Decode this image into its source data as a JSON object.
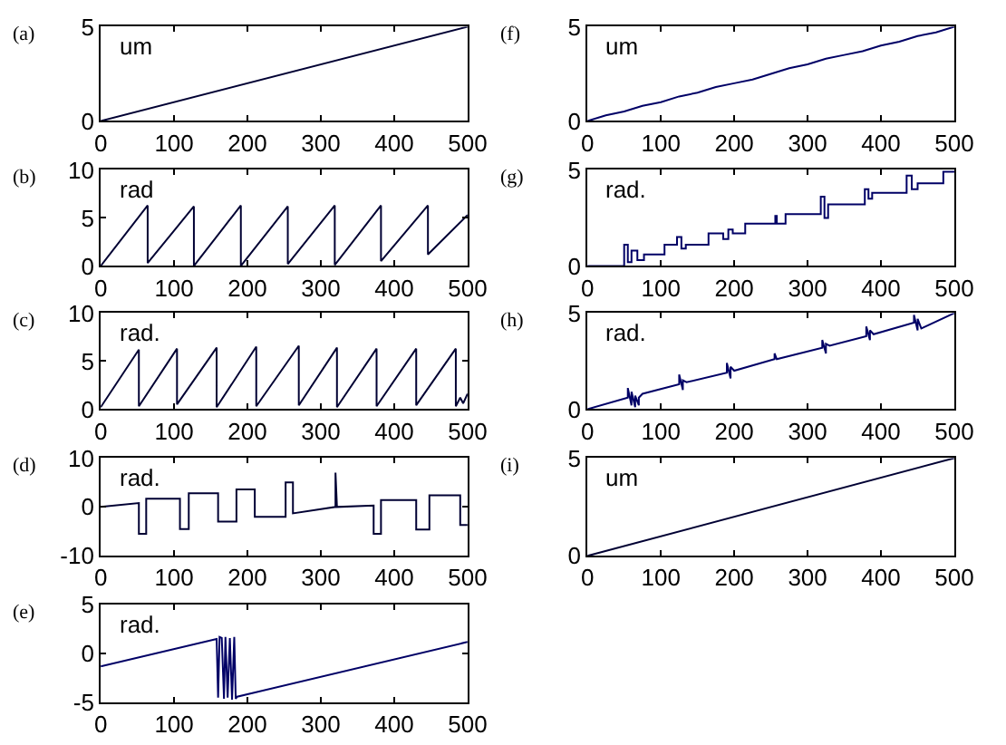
{
  "chart_data": [
    {
      "type": "line",
      "title": "(a)",
      "annotations": [
        "um"
      ],
      "color": "#000033",
      "xlim": [
        0,
        500
      ],
      "xticks": [
        0,
        100,
        200,
        300,
        400,
        500
      ],
      "ylim": [
        0,
        5
      ],
      "yticks": [
        0,
        5
      ],
      "x": [
        0,
        500
      ],
      "values": [
        0,
        5
      ]
    },
    {
      "type": "line",
      "title": "(f)",
      "annotations": [
        "um"
      ],
      "color": "#000066",
      "xlim": [
        0,
        500
      ],
      "xticks": [
        0,
        100,
        200,
        300,
        400,
        500
      ],
      "ylim": [
        0,
        5
      ],
      "yticks": [
        0,
        5
      ],
      "x": [
        0,
        25,
        50,
        75,
        100,
        125,
        150,
        175,
        200,
        225,
        250,
        275,
        300,
        325,
        350,
        375,
        400,
        425,
        450,
        475,
        500
      ],
      "values": [
        0,
        0.3,
        0.5,
        0.8,
        1,
        1.3,
        1.5,
        1.8,
        2,
        2.2,
        2.5,
        2.8,
        3,
        3.3,
        3.5,
        3.7,
        4,
        4.2,
        4.5,
        4.7,
        5
      ]
    },
    {
      "type": "line",
      "title": "(b)",
      "annotations": [
        "rad"
      ],
      "color": "#000033",
      "xlim": [
        0,
        500
      ],
      "xticks": [
        0,
        100,
        200,
        300,
        400,
        500
      ],
      "ylim": [
        0,
        10
      ],
      "yticks": [
        0,
        5,
        10
      ],
      "x": [
        0,
        64,
        64,
        127,
        127,
        191,
        191,
        255,
        255,
        319,
        319,
        382,
        382,
        446,
        446,
        500
      ],
      "values": [
        0,
        6.3,
        0.3,
        6.2,
        0,
        6.3,
        0,
        6.2,
        0.2,
        6.3,
        0.1,
        6.3,
        0.5,
        6.3,
        1.2,
        5.3
      ]
    },
    {
      "type": "line",
      "title": "(g)",
      "annotations": [
        "rad."
      ],
      "color": "#000066",
      "xlim": [
        0,
        500
      ],
      "xticks": [
        0,
        100,
        200,
        300,
        400,
        500
      ],
      "ylim": [
        0,
        5
      ],
      "yticks": [
        0,
        5
      ],
      "x": [
        0,
        50,
        50,
        55,
        55,
        60,
        60,
        68,
        68,
        77,
        77,
        105,
        105,
        122,
        122,
        128,
        128,
        134,
        134,
        165,
        165,
        185,
        185,
        192,
        192,
        198,
        198,
        215,
        215,
        256,
        256,
        258,
        258,
        270,
        270,
        318,
        318,
        323,
        323,
        328,
        328,
        378,
        378,
        383,
        383,
        388,
        388,
        435,
        435,
        442,
        442,
        450,
        450,
        455,
        455,
        485,
        485,
        500
      ],
      "values": [
        0,
        0,
        1.1,
        1.1,
        0.2,
        0.2,
        0.8,
        0.8,
        0.3,
        0.3,
        0.6,
        0.6,
        1.1,
        1.1,
        1.5,
        1.5,
        0.9,
        0.9,
        1.1,
        1.1,
        1.7,
        1.7,
        1.4,
        1.4,
        1.9,
        1.9,
        1.7,
        1.7,
        2.2,
        2.2,
        2.6,
        2.6,
        2.2,
        2.2,
        2.7,
        2.7,
        3.6,
        3.6,
        2.5,
        2.5,
        3.2,
        3.2,
        4,
        4,
        3.5,
        3.5,
        3.8,
        3.8,
        4.7,
        4.7,
        4,
        4,
        4.3,
        4.3,
        4.3,
        4.3,
        4.9,
        4.9
      ]
    },
    {
      "type": "line",
      "title": "(c)",
      "annotations": [
        "rad."
      ],
      "color": "#000033",
      "xlim": [
        0,
        500
      ],
      "xticks": [
        0,
        100,
        200,
        300,
        400,
        500
      ],
      "ylim": [
        0,
        10
      ],
      "yticks": [
        0,
        5,
        10
      ],
      "x": [
        0,
        52,
        52,
        104,
        104,
        158,
        158,
        212,
        212,
        270,
        270,
        322,
        322,
        376,
        376,
        430,
        430,
        484,
        484,
        490,
        494,
        500
      ],
      "values": [
        0.2,
        6.2,
        0.3,
        6.3,
        0.5,
        6.4,
        0.2,
        6.5,
        0.3,
        6.6,
        0.4,
        6.4,
        0.2,
        6.3,
        0.3,
        6.3,
        0.4,
        6.3,
        0.3,
        1.2,
        0.6,
        1.6
      ]
    },
    {
      "type": "line",
      "title": "(h)",
      "annotations": [
        "rad."
      ],
      "color": "#000066",
      "xlim": [
        0,
        500
      ],
      "xticks": [
        0,
        100,
        200,
        300,
        400,
        500
      ],
      "ylim": [
        0,
        5
      ],
      "yticks": [
        0,
        5
      ],
      "x": [
        0,
        55,
        55,
        60,
        60,
        65,
        65,
        70,
        70,
        75,
        125,
        125,
        130,
        130,
        135,
        190,
        190,
        195,
        195,
        200,
        255,
        255,
        258,
        320,
        320,
        325,
        325,
        330,
        380,
        380,
        385,
        385,
        390,
        445,
        445,
        450,
        450,
        455,
        500
      ],
      "values": [
        0,
        0.6,
        1.1,
        0.2,
        0.9,
        0.1,
        0.7,
        0.2,
        0.6,
        0.8,
        1.3,
        1.8,
        1,
        1.5,
        1.4,
        1.9,
        2.4,
        1.6,
        2.2,
        2,
        2.6,
        2.9,
        2.6,
        3.2,
        3.6,
        2.9,
        3.4,
        3.3,
        3.8,
        4.3,
        3.6,
        4.1,
        3.9,
        4.5,
        4.9,
        4.1,
        4.7,
        4.2,
        5
      ]
    },
    {
      "type": "line",
      "title": "(d)",
      "annotations": [
        "rad."
      ],
      "color": "#000033",
      "xlim": [
        0,
        500
      ],
      "xticks": [
        0,
        100,
        200,
        300,
        400,
        500
      ],
      "ylim": [
        -10,
        10
      ],
      "yticks": [
        -10,
        0,
        10
      ],
      "x": [
        0,
        52,
        52,
        62,
        62,
        108,
        108,
        120,
        120,
        160,
        160,
        185,
        185,
        210,
        210,
        252,
        252,
        262,
        262,
        320,
        320,
        322,
        322,
        372,
        372,
        382,
        382,
        430,
        430,
        448,
        448,
        490,
        490,
        500
      ],
      "values": [
        0,
        0.8,
        -5.5,
        -5.5,
        1.7,
        1.7,
        -4.5,
        -4.5,
        2.8,
        2.8,
        -3,
        -3,
        3.6,
        3.6,
        -2,
        -2,
        5,
        5,
        -1.3,
        0,
        7,
        0,
        0,
        0.3,
        -5.5,
        -5.5,
        1.4,
        1.4,
        -4.6,
        -4.6,
        2.4,
        2.4,
        -3.7,
        -3.7
      ]
    },
    {
      "type": "line",
      "title": "(i)",
      "annotations": [
        "um"
      ],
      "color": "#000033",
      "xlim": [
        0,
        500
      ],
      "xticks": [
        0,
        100,
        200,
        300,
        400,
        500
      ],
      "ylim": [
        0,
        5
      ],
      "yticks": [
        0,
        5
      ],
      "x": [
        0,
        500
      ],
      "values": [
        0,
        5
      ]
    },
    {
      "type": "line",
      "title": "(e)",
      "annotations": [
        "rad."
      ],
      "color": "#000066",
      "xlim": [
        0,
        500
      ],
      "xticks": [
        0,
        100,
        200,
        300,
        400,
        500
      ],
      "ylim": [
        -5,
        5
      ],
      "yticks": [
        -5,
        0,
        5
      ],
      "x": [
        0,
        158,
        160,
        162,
        165,
        168,
        170,
        173,
        176,
        179,
        182,
        184,
        186,
        500
      ],
      "values": [
        -1.3,
        1.5,
        -4.5,
        1.7,
        1.6,
        -4.6,
        1.7,
        -4.5,
        1.6,
        -4.7,
        1.7,
        -4.6,
        -4.4,
        1.2
      ]
    }
  ]
}
